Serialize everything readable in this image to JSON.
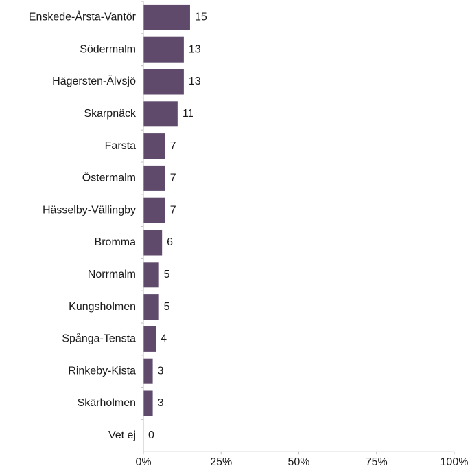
{
  "chart_data": {
    "type": "bar",
    "orientation": "horizontal",
    "categories": [
      "Enskede-Årsta-Vantör",
      "Södermalm",
      "Hägersten-Älvsjö",
      "Skarpnäck",
      "Farsta",
      "Östermalm",
      "Hässelby-Vällingby",
      "Bromma",
      "Norrmalm",
      "Kungsholmen",
      "Spånga-Tensta",
      "Rinkeby-Kista",
      "Skärholmen",
      "Vet ej"
    ],
    "values": [
      15,
      13,
      13,
      11,
      7,
      7,
      7,
      6,
      5,
      5,
      4,
      3,
      3,
      0
    ],
    "data_labels": [
      "15",
      "13",
      "13",
      "11",
      "7",
      "7",
      "7",
      "6",
      "5",
      "5",
      "4",
      "3",
      "3",
      "0"
    ],
    "xlim": [
      0,
      100
    ],
    "x_ticks": [
      0,
      25,
      50,
      75,
      100
    ],
    "x_tick_labels": [
      "0%",
      "25%",
      "50%",
      "75%",
      "100%"
    ],
    "title": "",
    "xlabel": "",
    "ylabel": "",
    "grid": false,
    "bar_color": "#5f4a6b"
  }
}
